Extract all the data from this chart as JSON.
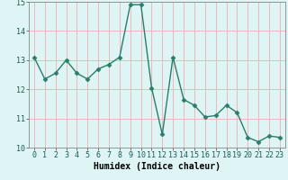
{
  "x": [
    0,
    1,
    2,
    3,
    4,
    5,
    6,
    7,
    8,
    9,
    10,
    11,
    12,
    13,
    14,
    15,
    16,
    17,
    18,
    19,
    20,
    21,
    22,
    23
  ],
  "y": [
    13.1,
    12.35,
    12.55,
    13.0,
    12.55,
    12.35,
    12.7,
    12.85,
    13.1,
    14.9,
    14.9,
    12.05,
    10.45,
    13.1,
    11.65,
    11.45,
    11.05,
    11.1,
    11.45,
    11.2,
    10.35,
    10.2,
    10.4,
    10.35
  ],
  "line_color": "#2a7d6b",
  "marker": "D",
  "marker_size": 2.5,
  "bg_color": "#dff4f4",
  "grid_color": "#f0b8b8",
  "xlabel": "Humidex (Indice chaleur)",
  "ylim": [
    10,
    15
  ],
  "xlim": [
    -0.5,
    23.5
  ],
  "yticks": [
    10,
    11,
    12,
    13,
    14,
    15
  ],
  "xticks": [
    0,
    1,
    2,
    3,
    4,
    5,
    6,
    7,
    8,
    9,
    10,
    11,
    12,
    13,
    14,
    15,
    16,
    17,
    18,
    19,
    20,
    21,
    22,
    23
  ],
  "xlabel_fontsize": 7,
  "tick_fontsize": 6
}
